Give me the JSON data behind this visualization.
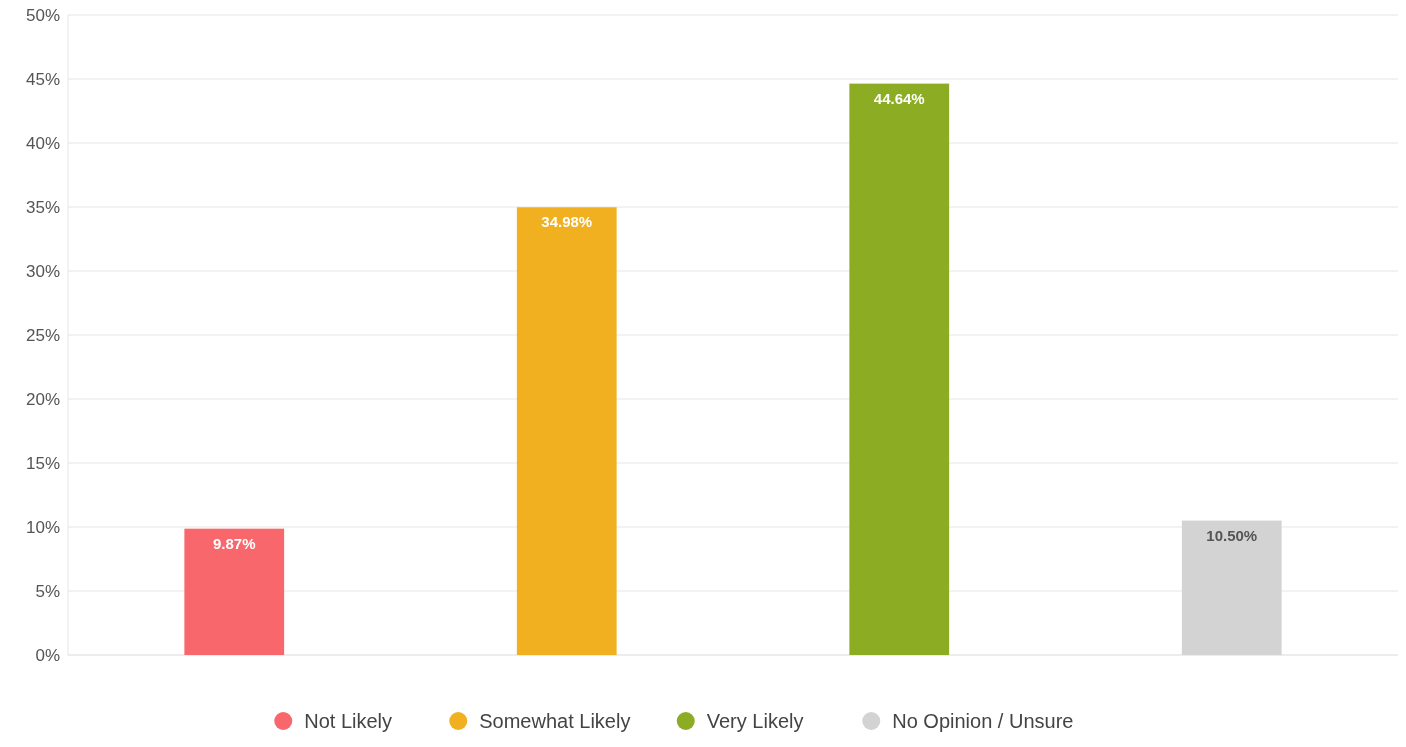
{
  "chart_data": {
    "type": "bar",
    "categories": [
      null,
      null,
      null,
      null
    ],
    "series": [
      {
        "name": "Not Likely",
        "color": "#f7676b",
        "values": [
          9.87,
          null,
          null,
          null
        ]
      },
      {
        "name": "Somewhat Likely",
        "color": "#f0b020",
        "values": [
          null,
          34.98,
          null,
          null
        ]
      },
      {
        "name": "Very Likely",
        "color": "#8bac23",
        "values": [
          null,
          null,
          44.64,
          null
        ]
      },
      {
        "name": "No Opinion / Unsure",
        "color": "#d3d3d3",
        "values": [
          null,
          null,
          null,
          10.5
        ]
      }
    ],
    "value_labels": [
      "9.87%",
      "34.98%",
      "44.64%",
      "10.50%"
    ],
    "ylim": [
      0,
      50
    ],
    "yticks": [
      {
        "value": 0,
        "label": "0%"
      },
      {
        "value": 5,
        "label": "5%"
      },
      {
        "value": 10,
        "label": "10%"
      },
      {
        "value": 15,
        "label": "15%"
      },
      {
        "value": 20,
        "label": "20%"
      },
      {
        "value": 25,
        "label": "25%"
      },
      {
        "value": 30,
        "label": "30%"
      },
      {
        "value": 35,
        "label": "35%"
      },
      {
        "value": 40,
        "label": "40%"
      },
      {
        "value": 45,
        "label": "45%"
      },
      {
        "value": 50,
        "label": "50%"
      }
    ],
    "grid": "y",
    "legend": "bottom"
  }
}
